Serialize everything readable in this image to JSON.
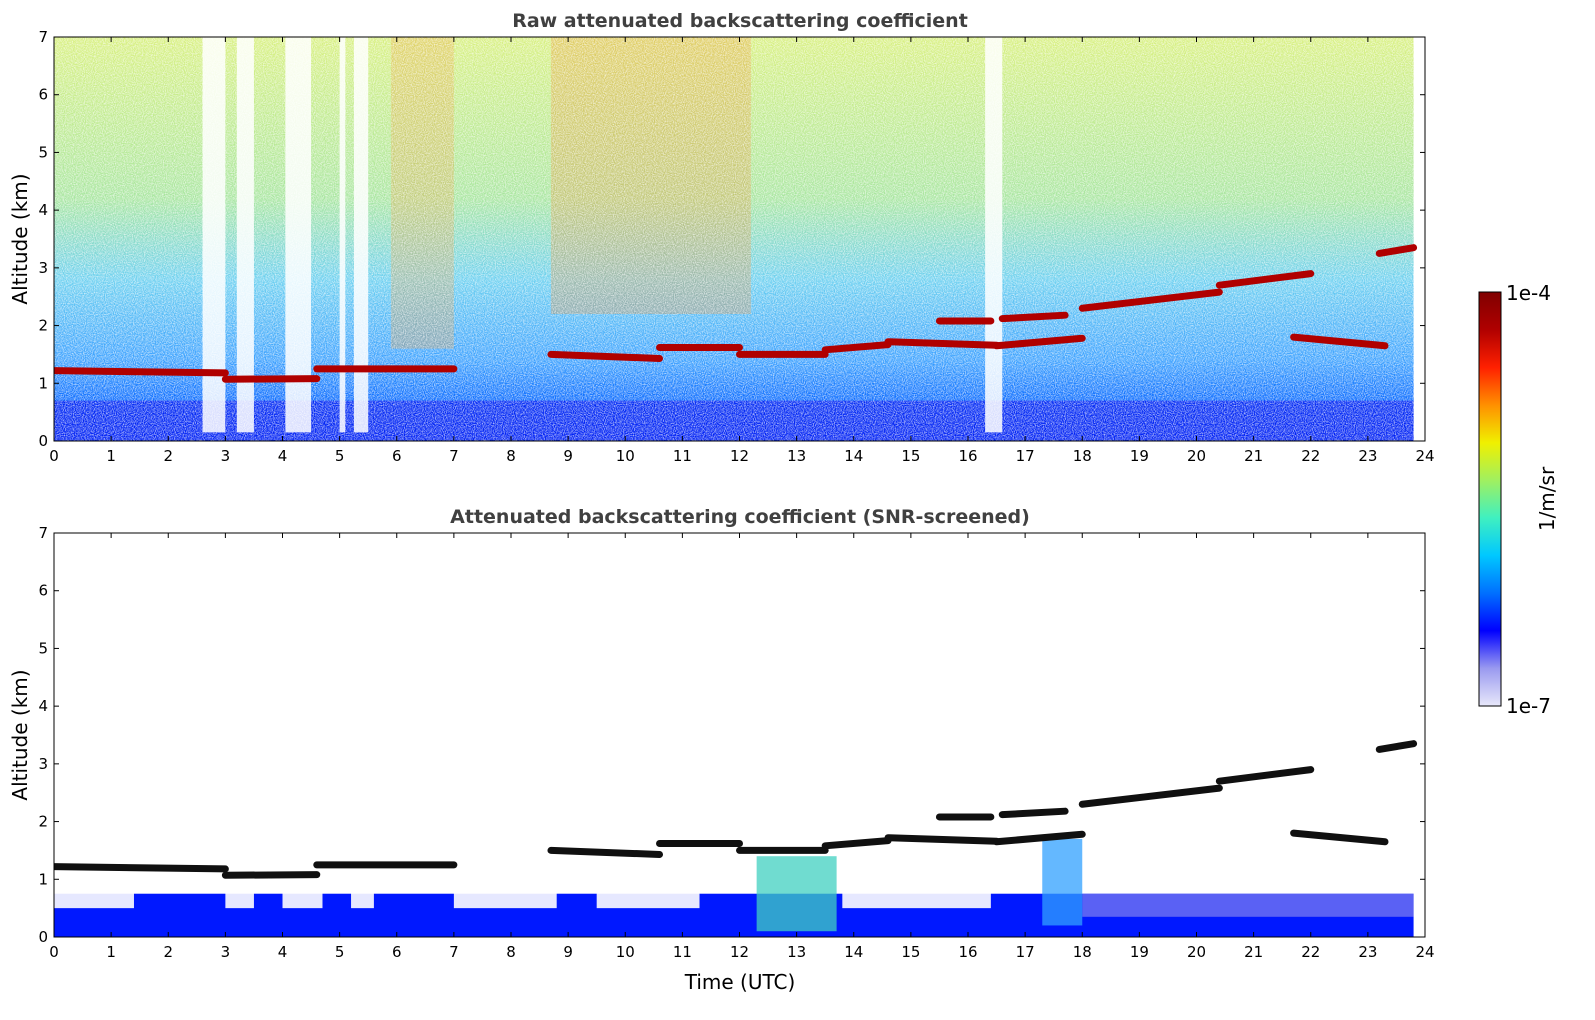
{
  "chart_data": [
    {
      "type": "heatmap",
      "title": "Raw attenuated backscattering coefficient",
      "xlabel": "",
      "ylabel": "Altitude (km)",
      "xlim": [
        0,
        24
      ],
      "ylim": [
        0,
        7
      ],
      "xticks": [
        "0",
        "1",
        "2",
        "3",
        "4",
        "5",
        "6",
        "7",
        "8",
        "9",
        "10",
        "11",
        "12",
        "13",
        "14",
        "15",
        "16",
        "17",
        "18",
        "19",
        "20",
        "21",
        "22",
        "23",
        "24"
      ],
      "yticks": [
        "0",
        "1",
        "2",
        "3",
        "4",
        "5",
        "6",
        "7"
      ],
      "data_end_hour": 23.8,
      "cloud_layers": [
        {
          "x": [
            0,
            3.0
          ],
          "y": [
            1.22,
            1.18
          ]
        },
        {
          "x": [
            3.0,
            4.6
          ],
          "y": [
            1.07,
            1.08
          ]
        },
        {
          "x": [
            4.6,
            7.0
          ],
          "y": [
            1.25,
            1.25
          ]
        },
        {
          "x": [
            8.7,
            10.6
          ],
          "y": [
            1.5,
            1.43
          ]
        },
        {
          "x": [
            10.6,
            12.0
          ],
          "y": [
            1.62,
            1.62
          ]
        },
        {
          "x": [
            12.0,
            13.5
          ],
          "y": [
            1.5,
            1.5
          ]
        },
        {
          "x": [
            13.5,
            14.6
          ],
          "y": [
            1.58,
            1.67
          ]
        },
        {
          "x": [
            14.6,
            16.5
          ],
          "y": [
            1.72,
            1.66
          ]
        },
        {
          "x": [
            16.5,
            18.0
          ],
          "y": [
            1.65,
            1.78
          ]
        },
        {
          "x": [
            15.5,
            16.4
          ],
          "y": [
            2.08,
            2.08
          ]
        },
        {
          "x": [
            16.6,
            17.7
          ],
          "y": [
            2.12,
            2.18
          ]
        },
        {
          "x": [
            18.0,
            20.4
          ],
          "y": [
            2.3,
            2.58
          ]
        },
        {
          "x": [
            20.4,
            22.0
          ],
          "y": [
            2.7,
            2.9
          ]
        },
        {
          "x": [
            21.7,
            23.3
          ],
          "y": [
            1.8,
            1.65
          ]
        },
        {
          "x": [
            23.2,
            23.8
          ],
          "y": [
            3.25,
            3.35
          ]
        }
      ]
    },
    {
      "type": "heatmap",
      "title": "Attenuated backscattering coefficient (SNR-screened)",
      "xlabel": "Time (UTC)",
      "ylabel": "Altitude (km)",
      "xlim": [
        0,
        24
      ],
      "ylim": [
        0,
        7
      ],
      "xticks": [
        "0",
        "1",
        "2",
        "3",
        "4",
        "5",
        "6",
        "7",
        "8",
        "9",
        "10",
        "11",
        "12",
        "13",
        "14",
        "15",
        "16",
        "17",
        "18",
        "19",
        "20",
        "21",
        "22",
        "23",
        "24"
      ],
      "yticks": [
        "0",
        "1",
        "2",
        "3",
        "4",
        "5",
        "6",
        "7"
      ],
      "data_end_hour": 23.8
    }
  ],
  "colorbar": {
    "label": "1/m/sr",
    "max_label": "1e-4",
    "min_label": "1e-7",
    "colors": [
      "#e8e8fa",
      "#9a9af0",
      "#0000ff",
      "#0070ff",
      "#00c8ff",
      "#40f0c0",
      "#a0f060",
      "#f0f000",
      "#ff9000",
      "#ff2000",
      "#b00000",
      "#800000"
    ]
  }
}
